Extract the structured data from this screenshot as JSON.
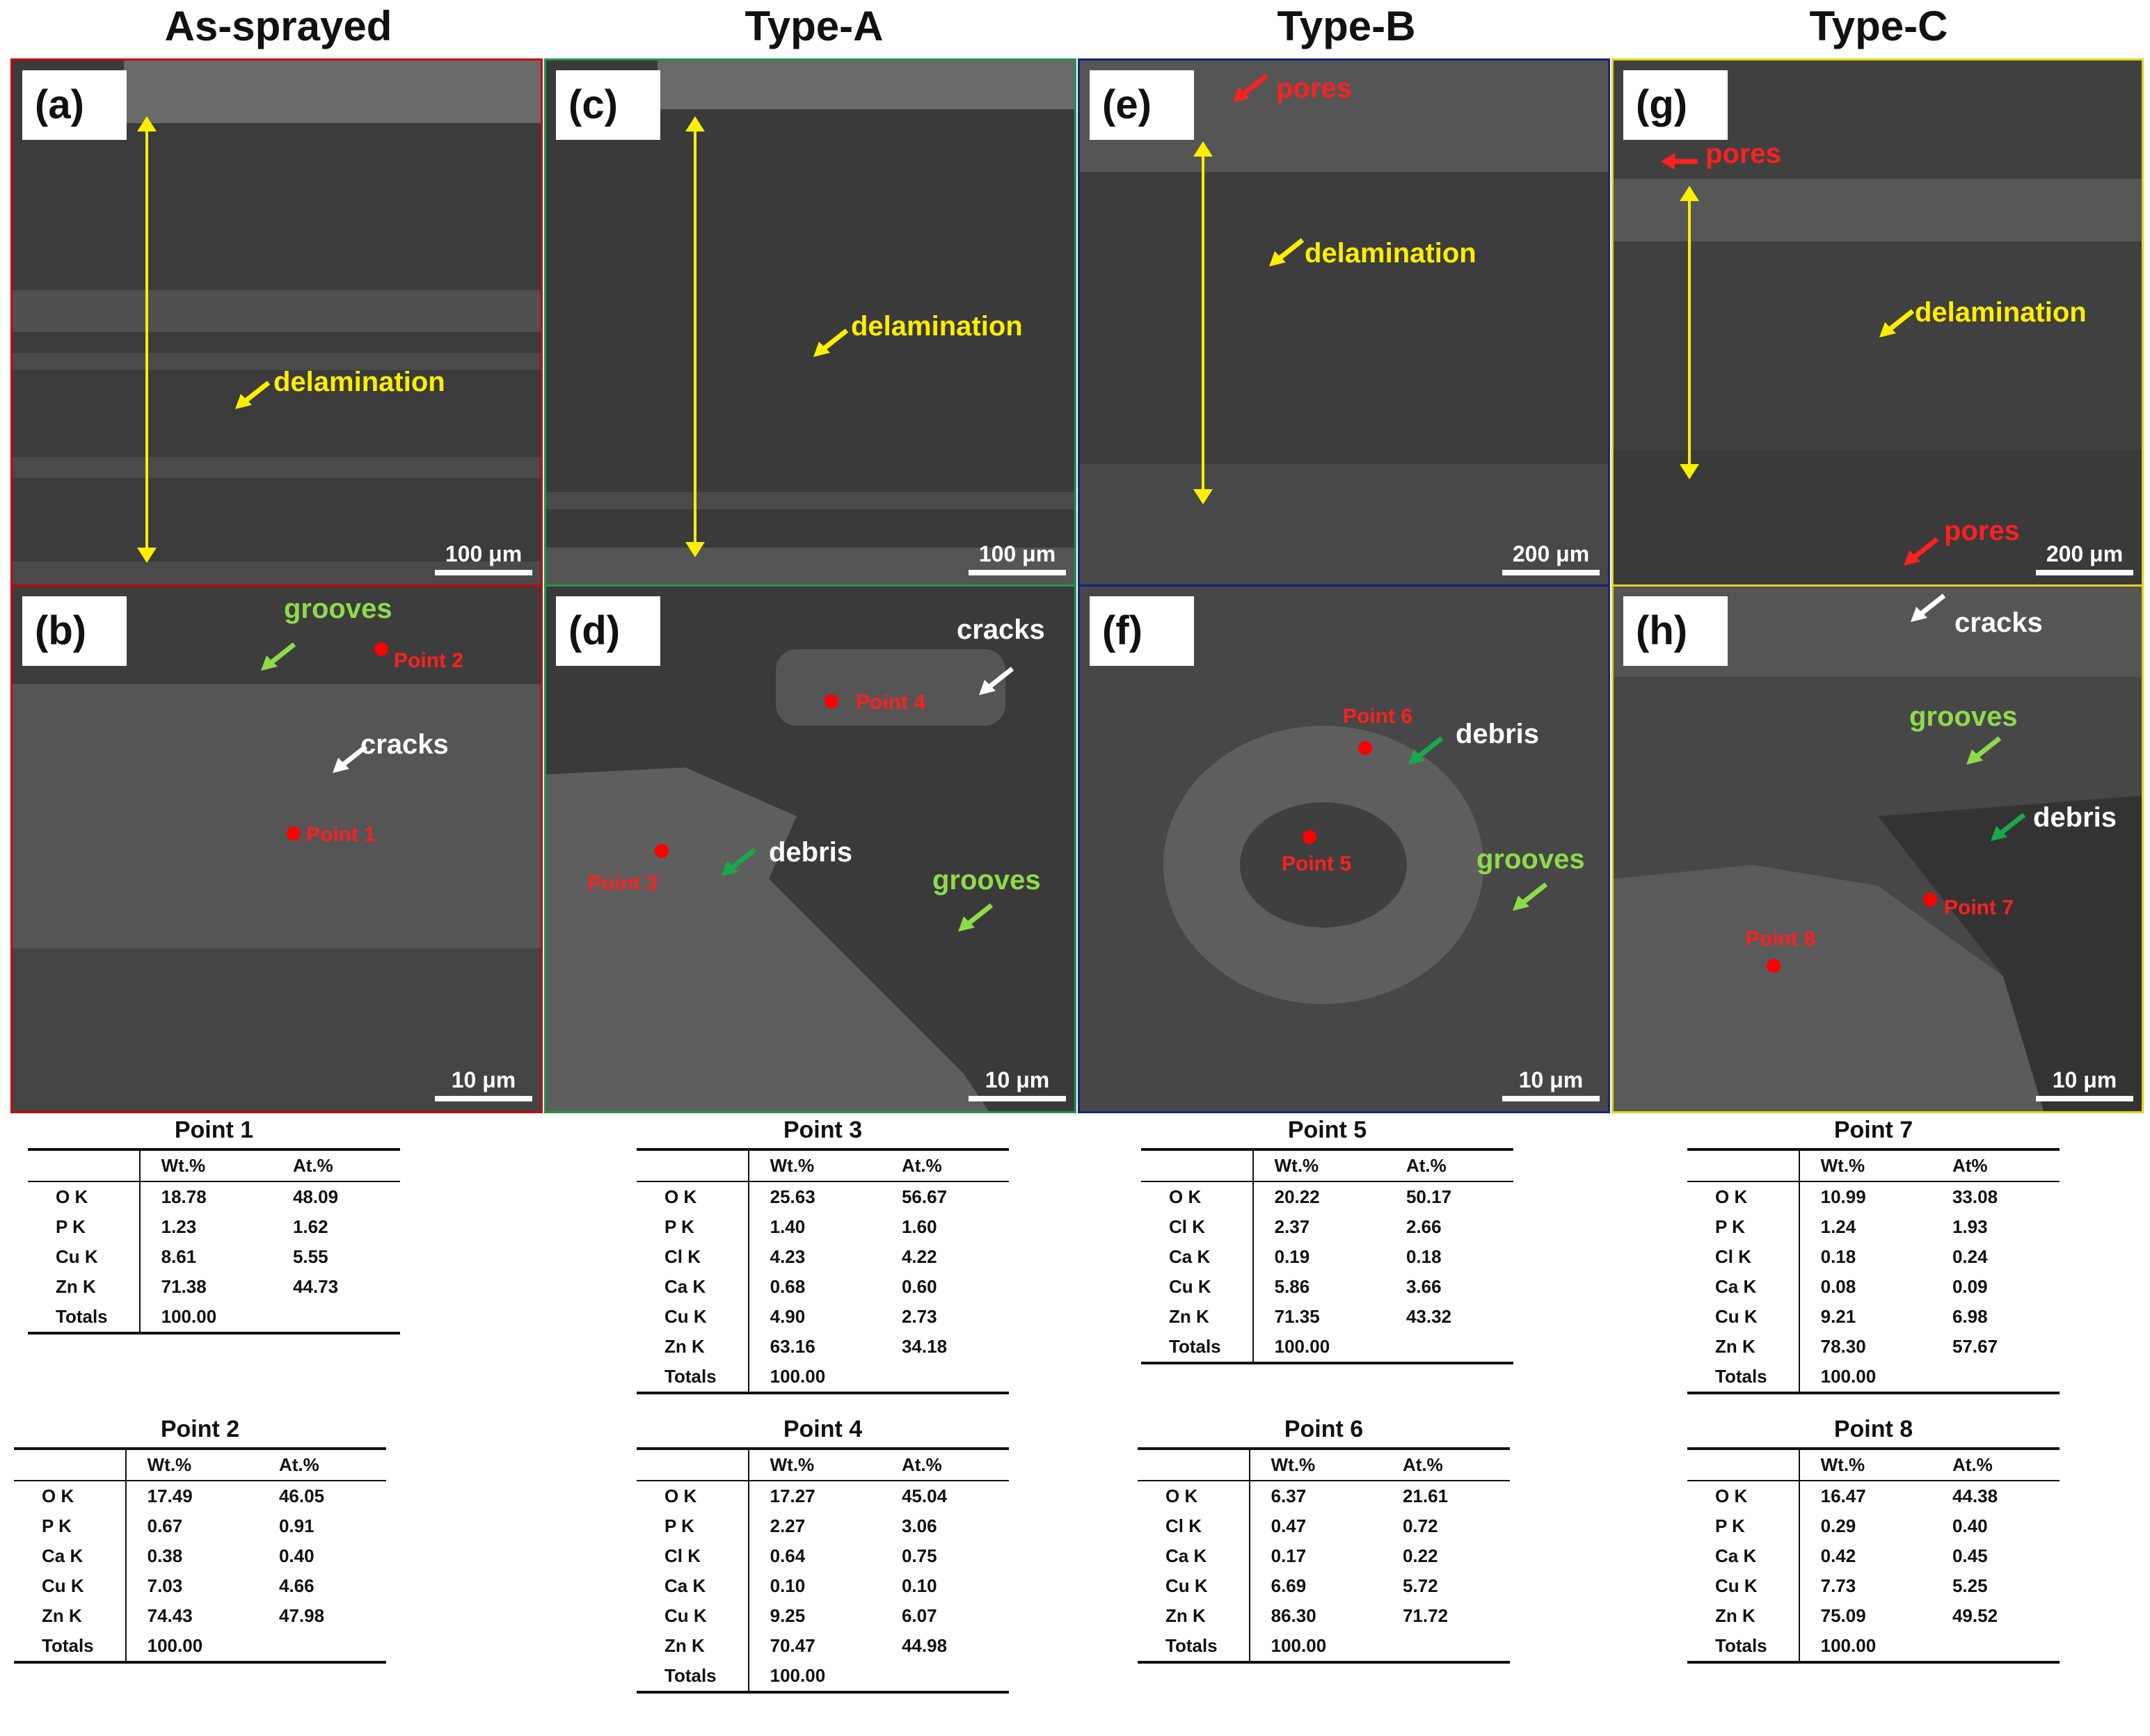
{
  "columns": [
    {
      "title": "As-sprayed"
    },
    {
      "title": "Type-A"
    },
    {
      "title": "Type-B"
    },
    {
      "title": "Type-C"
    }
  ],
  "panels": {
    "a": {
      "label": "(a)",
      "scale": "100 μm",
      "border": "#cc0000",
      "annotations": {
        "delam": "delamination"
      }
    },
    "b": {
      "label": "(b)",
      "scale": "10 μm",
      "border": "#cc0000",
      "annotations": {
        "grooves": "grooves",
        "cracks": "cracks",
        "p1": "Point 1",
        "p2": "Point 2"
      }
    },
    "c": {
      "label": "(c)",
      "scale": "100 μm",
      "border": "#1a9a4a",
      "annotations": {
        "delam": "delamination"
      }
    },
    "d": {
      "label": "(d)",
      "scale": "10 μm",
      "border": "#1a9a4a",
      "annotations": {
        "cracks": "cracks",
        "debris": "debris",
        "grooves": "grooves",
        "p3": "Point 3",
        "p4": "Point 4"
      }
    },
    "e": {
      "label": "(e)",
      "scale": "200 μm",
      "border": "#1a237e",
      "annotations": {
        "pores": "pores",
        "delam": "delamination"
      }
    },
    "f": {
      "label": "(f)",
      "scale": "10 μm",
      "border": "#1a237e",
      "annotations": {
        "debris": "debris",
        "grooves": "grooves",
        "p5": "Point 5",
        "p6": "Point 6"
      }
    },
    "g": {
      "label": "(g)",
      "scale": "200 μm",
      "border": "#e6d21a",
      "annotations": {
        "pores1": "pores",
        "pores2": "pores",
        "delam": "delamination"
      }
    },
    "h": {
      "label": "(h)",
      "scale": "10 μm",
      "border": "#e6d21a",
      "annotations": {
        "cracks": "cracks",
        "grooves": "grooves",
        "debris": "debris",
        "p7": "Point 7",
        "p8": "Point 8"
      }
    }
  },
  "header_labels": {
    "wt": "Wt.%",
    "at": "At.%",
    "at_alt": "At%"
  },
  "tables": {
    "p1": {
      "title": "Point 1",
      "at_header": "At.%",
      "rows": [
        [
          "O K",
          "18.78",
          "48.09"
        ],
        [
          "P K",
          "1.23",
          "1.62"
        ],
        [
          "Cu K",
          "8.61",
          "5.55"
        ],
        [
          "Zn K",
          "71.38",
          "44.73"
        ],
        [
          "Totals",
          "100.00",
          ""
        ]
      ]
    },
    "p2": {
      "title": "Point 2",
      "at_header": "At.%",
      "rows": [
        [
          "O K",
          "17.49",
          "46.05"
        ],
        [
          "P K",
          "0.67",
          "0.91"
        ],
        [
          "Ca K",
          "0.38",
          "0.40"
        ],
        [
          "Cu K",
          "7.03",
          "4.66"
        ],
        [
          "Zn K",
          "74.43",
          "47.98"
        ],
        [
          "Totals",
          "100.00",
          ""
        ]
      ]
    },
    "p3": {
      "title": "Point 3",
      "at_header": "At.%",
      "rows": [
        [
          "O K",
          "25.63",
          "56.67"
        ],
        [
          "P K",
          "1.40",
          "1.60"
        ],
        [
          "Cl K",
          "4.23",
          "4.22"
        ],
        [
          "Ca K",
          "0.68",
          "0.60"
        ],
        [
          "Cu K",
          "4.90",
          "2.73"
        ],
        [
          "Zn K",
          "63.16",
          "34.18"
        ],
        [
          "Totals",
          "100.00",
          ""
        ]
      ]
    },
    "p4": {
      "title": "Point 4",
      "at_header": "At.%",
      "rows": [
        [
          "O K",
          "17.27",
          "45.04"
        ],
        [
          "P K",
          "2.27",
          "3.06"
        ],
        [
          "Cl K",
          "0.64",
          "0.75"
        ],
        [
          "Ca K",
          "0.10",
          "0.10"
        ],
        [
          "Cu K",
          "9.25",
          "6.07"
        ],
        [
          "Zn K",
          "70.47",
          "44.98"
        ],
        [
          "Totals",
          "100.00",
          ""
        ]
      ]
    },
    "p5": {
      "title": "Point 5",
      "at_header": "At.%",
      "rows": [
        [
          "O K",
          "20.22",
          "50.17"
        ],
        [
          "Cl K",
          "2.37",
          "2.66"
        ],
        [
          "Ca K",
          "0.19",
          "0.18"
        ],
        [
          "Cu K",
          "5.86",
          "3.66"
        ],
        [
          "Zn K",
          "71.35",
          "43.32"
        ],
        [
          "Totals",
          "100.00",
          ""
        ]
      ]
    },
    "p6": {
      "title": "Point 6",
      "at_header": "At.%",
      "rows": [
        [
          "O K",
          "6.37",
          "21.61"
        ],
        [
          "Cl K",
          "0.47",
          "0.72"
        ],
        [
          "Ca K",
          "0.17",
          "0.22"
        ],
        [
          "Cu K",
          "6.69",
          "5.72"
        ],
        [
          "Zn K",
          "86.30",
          "71.72"
        ],
        [
          "Totals",
          "100.00",
          ""
        ]
      ]
    },
    "p7": {
      "title": "Point 7",
      "at_header": "At%",
      "rows": [
        [
          "O K",
          "10.99",
          "33.08"
        ],
        [
          "P K",
          "1.24",
          "1.93"
        ],
        [
          "Cl K",
          "0.18",
          "0.24"
        ],
        [
          "Ca K",
          "0.08",
          "0.09"
        ],
        [
          "Cu K",
          "9.21",
          "6.98"
        ],
        [
          "Zn K",
          "78.30",
          "57.67"
        ],
        [
          "Totals",
          "100.00",
          ""
        ]
      ]
    },
    "p8": {
      "title": "Point 8",
      "at_header": "At.%",
      "rows": [
        [
          "O K",
          "16.47",
          "44.38"
        ],
        [
          "P K",
          "0.29",
          "0.40"
        ],
        [
          "Ca K",
          "0.42",
          "0.45"
        ],
        [
          "Cu K",
          "7.73",
          "5.25"
        ],
        [
          "Zn K",
          "75.09",
          "49.52"
        ],
        [
          "Totals",
          "100.00",
          ""
        ]
      ]
    }
  }
}
